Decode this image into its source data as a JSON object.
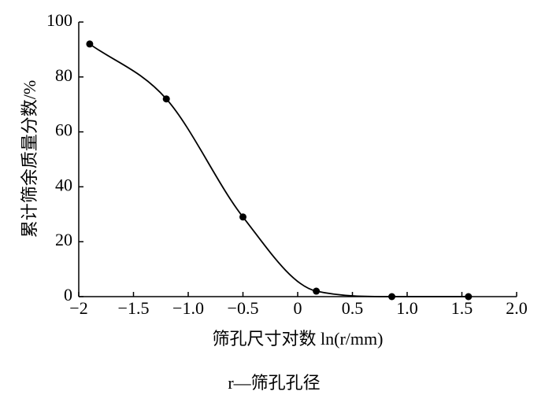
{
  "chart_data": {
    "type": "line",
    "ylabel": "累计筛余质量分数/%",
    "xlabel": "筛孔尺寸对数 ln(r/mm)",
    "caption": "r—筛孔孔径",
    "x": [
      -1.9,
      -1.2,
      -0.5,
      0.17,
      0.86,
      1.56
    ],
    "values": [
      92,
      72,
      29,
      2,
      0,
      0
    ],
    "color": "#000000",
    "xlim": [
      -2,
      2
    ],
    "xticks": [
      {
        "value": -2,
        "label": "−2"
      },
      {
        "value": -1.5,
        "label": "−1.5"
      },
      {
        "value": -1,
        "label": "−1.0"
      },
      {
        "value": -0.5,
        "label": "−0.5"
      },
      0,
      0.5,
      {
        "value": 1,
        "label": "1.0"
      },
      1.5,
      {
        "value": 2,
        "label": "2.0"
      }
    ],
    "ylim": [
      0,
      100
    ],
    "yticks": [
      0,
      20,
      40,
      60,
      80,
      100
    ],
    "grid": false
  }
}
